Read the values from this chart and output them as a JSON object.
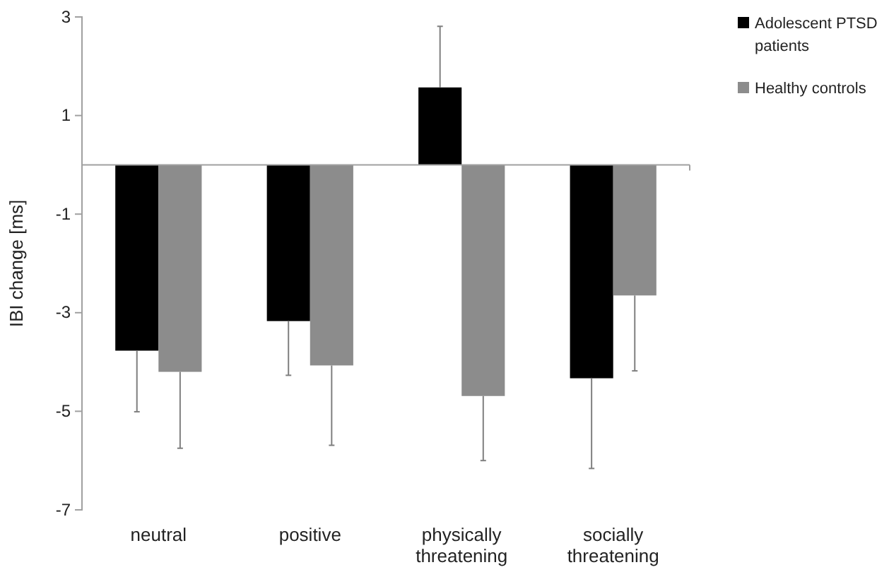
{
  "chart_data": {
    "type": "bar",
    "ylabel": "IBI change [ms]",
    "categories": [
      "neutral",
      "positive",
      "physically threatening",
      "socially threatening"
    ],
    "series": [
      {
        "name": "Adolescent PTSD patients",
        "color": "#000000",
        "values": [
          -3.77,
          -3.17,
          1.57,
          -4.33
        ],
        "errors": [
          [
            -5.01,
            -3.77
          ],
          [
            -4.27,
            -3.17
          ],
          [
            1.57,
            2.81
          ],
          [
            -6.16,
            -4.33
          ]
        ]
      },
      {
        "name": "Healthy controls",
        "color": "#8c8c8c",
        "values": [
          -4.2,
          -4.07,
          -4.69,
          -2.65
        ],
        "errors": [
          [
            -5.75,
            -4.2
          ],
          [
            -5.69,
            -4.07
          ],
          [
            -6.0,
            -4.69
          ],
          [
            -4.18,
            -2.65
          ]
        ]
      }
    ],
    "ylim": [
      -7,
      3
    ],
    "yticks": [
      -7,
      -5,
      -3,
      -1,
      1,
      3
    ],
    "grid": false,
    "legend": "top right"
  }
}
